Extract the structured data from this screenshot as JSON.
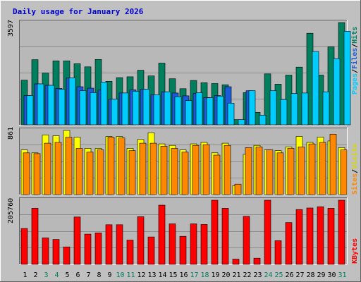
{
  "chart_data": [
    {
      "type": "bar",
      "title": "Daily usage for January 2026",
      "ymax_label": "3597",
      "ylim": [
        0,
        3597
      ],
      "categories": [
        "1",
        "2",
        "3",
        "4",
        "5",
        "6",
        "7",
        "8",
        "9",
        "10",
        "11",
        "12",
        "13",
        "14",
        "15",
        "16",
        "17",
        "18",
        "19",
        "20",
        "21",
        "22",
        "23",
        "24",
        "25",
        "26",
        "27",
        "28",
        "29",
        "30",
        "31"
      ],
      "weekend_days": [
        "3",
        "4",
        "10",
        "11",
        "17",
        "18",
        "24",
        "25",
        "31"
      ],
      "right_label_parts": [
        "Pages",
        "/",
        "Files",
        "/",
        "Hits"
      ],
      "series": [
        {
          "name": "Hits",
          "color": "#007f5f",
          "values": [
            1570,
            2290,
            1820,
            2250,
            2250,
            2150,
            2040,
            2300,
            1530,
            1660,
            1690,
            1920,
            1720,
            2170,
            1620,
            1270,
            1560,
            1480,
            1450,
            1410,
            180,
            1130,
            440,
            1790,
            1430,
            1750,
            2030,
            3220,
            1750,
            2740,
            3597
          ]
        },
        {
          "name": "Files",
          "color": "#1a5cd8",
          "values": [
            1030,
            1440,
            1390,
            1280,
            1650,
            1340,
            1290,
            1220,
            900,
            1120,
            1230,
            1250,
            1060,
            1160,
            1120,
            1020,
            1100,
            960,
            1030,
            1340,
            0,
            1200,
            0,
            0,
            0,
            0,
            0,
            0,
            0,
            0,
            0
          ]
        },
        {
          "name": "Pages",
          "color": "#00ccff",
          "values": [
            1030,
            1440,
            1390,
            1250,
            1650,
            1200,
            1130,
            1500,
            900,
            1120,
            1180,
            1250,
            1060,
            1160,
            990,
            850,
            1130,
            950,
            1010,
            760,
            180,
            1200,
            340,
            1200,
            890,
            1100,
            1120,
            2580,
            1160,
            2330,
            3290
          ]
        }
      ]
    },
    {
      "type": "bar",
      "ymax_label": "861",
      "ylim": [
        0,
        861
      ],
      "right_label_parts": [
        "Sites",
        "/",
        "Visits"
      ],
      "series": [
        {
          "name": "Visits",
          "color": "#ffff00",
          "values": [
            600,
            560,
            800,
            790,
            861,
            770,
            620,
            620,
            780,
            780,
            620,
            740,
            830,
            680,
            660,
            600,
            680,
            700,
            560,
            690,
            120,
            540,
            660,
            600,
            590,
            640,
            780,
            700,
            770,
            720,
            630
          ]
        },
        {
          "name": "Sites",
          "color": "#ff8800",
          "values": [
            560,
            550,
            690,
            700,
            770,
            620,
            570,
            600,
            770,
            760,
            590,
            690,
            690,
            650,
            620,
            570,
            660,
            670,
            530,
            660,
            140,
            630,
            640,
            600,
            560,
            620,
            640,
            680,
            700,
            810,
            600
          ]
        }
      ]
    },
    {
      "type": "bar",
      "ymax_label": "205760",
      "ylim": [
        0,
        205760
      ],
      "right_label_parts": [
        "KBytes"
      ],
      "series": [
        {
          "name": "KBytes",
          "color": "#ff0000",
          "values": [
            115000,
            180000,
            85000,
            80000,
            56000,
            152000,
            97000,
            101000,
            127000,
            127000,
            78000,
            153000,
            88000,
            190000,
            130000,
            90000,
            130000,
            128000,
            205760,
            180000,
            17000,
            154000,
            20000,
            205760,
            76000,
            134000,
            176000,
            181000,
            185000,
            180000,
            205760
          ]
        }
      ]
    }
  ],
  "colors": {
    "background": "#c0c0c0",
    "plot_area": "#b8b8b8",
    "title": "#0000cc",
    "weekend_label": "#00805f",
    "weekday_label": "#000000",
    "pages_label": "#00ccff",
    "files_label": "#1a5cd8",
    "hits_label": "#007f5f",
    "sites_label": "#ff8800",
    "visits_label": "#d8d800",
    "kbytes_label": "#ff0000"
  }
}
